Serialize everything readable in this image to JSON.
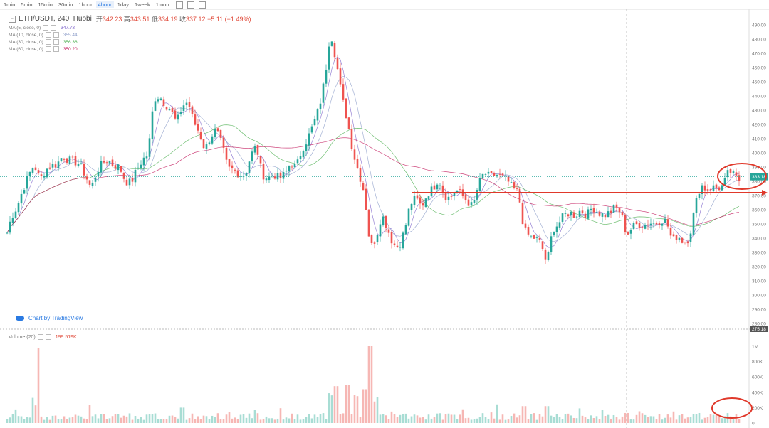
{
  "toolbar": {
    "timeframes": [
      "1min",
      "5min",
      "15min",
      "30min",
      "1hour",
      "4hour",
      "1day",
      "1week",
      "1mon"
    ],
    "active": "4hour"
  },
  "legend": {
    "symbol": "ETH/USDT, 240, Huobi",
    "open_label": "开",
    "open": "342.23",
    "high_label": "高",
    "high": "343.51",
    "low_label": "低",
    "low": "334.19",
    "close_label": "收",
    "close": "337.12",
    "change": "−5.11 (−1.49%)",
    "ma": [
      {
        "label": "MA (5, close, 0)",
        "value": "347.73",
        "color": "#7b61c9"
      },
      {
        "label": "MA (10, close, 0)",
        "value": "355.44",
        "color": "#8c9dc9"
      },
      {
        "label": "MA (30, close, 0)",
        "value": "356.36",
        "color": "#4caf50"
      },
      {
        "label": "MA (60, close, 0)",
        "value": "350.20",
        "color": "#c2185b"
      }
    ]
  },
  "volume_legend": {
    "label": "Volume (20)",
    "value": "199.519K"
  },
  "brand": "Chart by TradingView",
  "price_tag": "383.18",
  "crosshair_tag": "275.18",
  "chart_data": {
    "type": "candlestick",
    "price_axis": {
      "min": 280,
      "max": 490,
      "ticks": [
        280,
        290,
        300,
        310,
        320,
        330,
        340,
        350,
        360,
        370,
        380,
        390,
        400,
        410,
        420,
        430,
        440,
        450,
        460,
        470,
        480,
        490
      ]
    },
    "volume_axis": {
      "ticks": [
        {
          "v": 0,
          "label": "0"
        },
        {
          "v": 200000,
          "label": "200K"
        },
        {
          "v": 400000,
          "label": "400K"
        },
        {
          "v": 600000,
          "label": "600K"
        },
        {
          "v": 800000,
          "label": "800K"
        },
        {
          "v": 1000000,
          "label": "1M"
        }
      ]
    },
    "path_points": [
      [
        0,
        318
      ],
      [
        8,
        340
      ],
      [
        16,
        355
      ],
      [
        24,
        362
      ],
      [
        32,
        374
      ],
      [
        40,
        384
      ],
      [
        48,
        392
      ],
      [
        56,
        381
      ],
      [
        64,
        388
      ],
      [
        72,
        391
      ],
      [
        80,
        392
      ],
      [
        88,
        398
      ],
      [
        96,
        395
      ],
      [
        104,
        394
      ],
      [
        112,
        392
      ],
      [
        120,
        384
      ],
      [
        128,
        375
      ],
      [
        136,
        387
      ],
      [
        144,
        393
      ],
      [
        152,
        395
      ],
      [
        160,
        391
      ],
      [
        168,
        390
      ],
      [
        176,
        380
      ],
      [
        184,
        379
      ],
      [
        192,
        388
      ],
      [
        200,
        395
      ],
      [
        208,
        399
      ],
      [
        216,
        438
      ],
      [
        224,
        440
      ],
      [
        232,
        434
      ],
      [
        240,
        430
      ],
      [
        248,
        421
      ],
      [
        256,
        433
      ],
      [
        264,
        436
      ],
      [
        272,
        422
      ],
      [
        280,
        414
      ],
      [
        288,
        402
      ],
      [
        296,
        412
      ],
      [
        304,
        416
      ],
      [
        312,
        405
      ],
      [
        320,
        389
      ],
      [
        328,
        388
      ],
      [
        336,
        385
      ],
      [
        344,
        384
      ],
      [
        352,
        398
      ],
      [
        360,
        405
      ],
      [
        368,
        385
      ],
      [
        376,
        382
      ],
      [
        384,
        385
      ],
      [
        392,
        382
      ],
      [
        400,
        385
      ],
      [
        408,
        393
      ],
      [
        416,
        390
      ],
      [
        424,
        402
      ],
      [
        432,
        410
      ],
      [
        440,
        420
      ],
      [
        448,
        431
      ],
      [
        456,
        452
      ],
      [
        464,
        486
      ],
      [
        472,
        465
      ],
      [
        480,
        440
      ],
      [
        488,
        422
      ],
      [
        496,
        400
      ],
      [
        504,
        386
      ],
      [
        512,
        371
      ],
      [
        520,
        333
      ],
      [
        528,
        340
      ],
      [
        536,
        357
      ],
      [
        544,
        347
      ],
      [
        552,
        336
      ],
      [
        560,
        334
      ],
      [
        568,
        345
      ],
      [
        576,
        364
      ],
      [
        584,
        368
      ],
      [
        592,
        362
      ],
      [
        600,
        371
      ],
      [
        608,
        375
      ],
      [
        616,
        382
      ],
      [
        624,
        370
      ],
      [
        632,
        368
      ],
      [
        640,
        374
      ],
      [
        648,
        371
      ],
      [
        656,
        366
      ],
      [
        664,
        362
      ],
      [
        672,
        378
      ],
      [
        680,
        386
      ],
      [
        688,
        383
      ],
      [
        696,
        385
      ],
      [
        704,
        383
      ],
      [
        712,
        381
      ],
      [
        720,
        375
      ],
      [
        728,
        372
      ],
      [
        736,
        346
      ],
      [
        744,
        341
      ],
      [
        752,
        340
      ],
      [
        760,
        336
      ],
      [
        768,
        322
      ],
      [
        776,
        346
      ],
      [
        784,
        350
      ],
      [
        792,
        356
      ],
      [
        800,
        358
      ],
      [
        808,
        356
      ],
      [
        816,
        360
      ],
      [
        824,
        356
      ],
      [
        832,
        362
      ],
      [
        840,
        358
      ],
      [
        848,
        356
      ],
      [
        856,
        358
      ],
      [
        864,
        362
      ],
      [
        872,
        358
      ],
      [
        880,
        342
      ],
      [
        888,
        348
      ],
      [
        896,
        350
      ],
      [
        904,
        349
      ],
      [
        912,
        351
      ],
      [
        920,
        350
      ],
      [
        928,
        353
      ],
      [
        936,
        352
      ],
      [
        944,
        338
      ],
      [
        952,
        342
      ],
      [
        960,
        337
      ],
      [
        968,
        340
      ],
      [
        976,
        362
      ],
      [
        984,
        378
      ],
      [
        992,
        374
      ],
      [
        1000,
        376
      ],
      [
        1008,
        375
      ],
      [
        1016,
        377
      ],
      [
        1024,
        388
      ],
      [
        1032,
        383
      ],
      [
        1040,
        380
      ],
      [
        1046,
        383
      ]
    ],
    "volume_spikes": [
      [
        52,
        980000
      ],
      [
        48,
        230000
      ],
      [
        126,
        240000
      ],
      [
        256,
        200000
      ],
      [
        464,
        360000
      ],
      [
        472,
        480000
      ],
      [
        488,
        500000
      ],
      [
        500,
        350000
      ],
      [
        512,
        440000
      ],
      [
        520,
        1000000
      ],
      [
        528,
        280000
      ],
      [
        736,
        220000
      ],
      [
        768,
        220000
      ],
      [
        880,
        130000
      ]
    ],
    "horizontal_line": {
      "price": 372,
      "x_start": 578,
      "x_end": 1080,
      "color": "#e0392b"
    },
    "annotations": [
      {
        "shape": "ellipse",
        "cx": 1042,
        "cy": 248,
        "rx": 34,
        "ry": 18,
        "color": "#e0392b"
      },
      {
        "shape": "ellipse",
        "cx": 1028,
        "cy": 574,
        "rx": 28,
        "ry": 14,
        "color": "#e0392b"
      }
    ]
  }
}
